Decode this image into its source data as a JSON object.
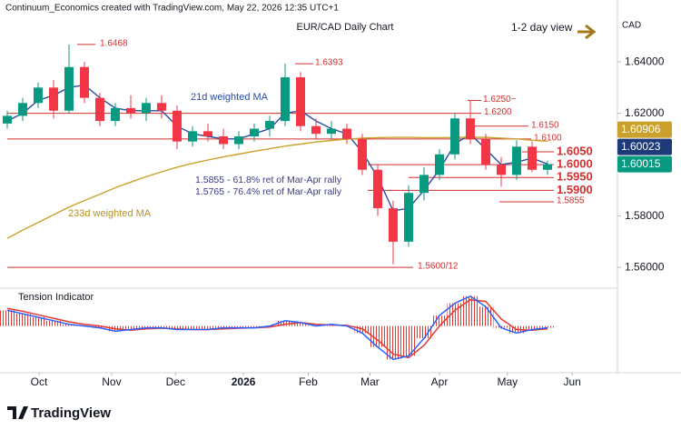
{
  "header": "Continuum_Economics created with TradingView.com, May 22, 2026 12:35 UTC+1",
  "footer_logo": "TradingView",
  "chart_data": [
    {
      "type": "candlestick",
      "title": "EUR/CAD Daily Chart",
      "subtitle": "1-2 day view",
      "currency": "CAD",
      "xlim": [
        -0.47,
        39.53
      ],
      "ylim": [
        1.5526,
        1.6641
      ],
      "xticks": [
        {
          "value": 2.06,
          "label": "Oct"
        },
        {
          "value": 6.76,
          "label": "Nov"
        },
        {
          "value": 10.9,
          "label": "Dec"
        },
        {
          "value": 15.3,
          "label": "2026"
        },
        {
          "value": 19.5,
          "label": "Feb"
        },
        {
          "value": 23.5,
          "label": "Mar"
        },
        {
          "value": 28,
          "label": "Apr"
        },
        {
          "value": 32.4,
          "label": "May"
        },
        {
          "value": 36.6,
          "label": "Jun"
        }
      ],
      "yticks": [
        {
          "value": 1.64,
          "label": "1.64000"
        },
        {
          "value": 1.62,
          "label": "1.62000"
        },
        {
          "value": 1.6,
          "label": "1.60000"
        },
        {
          "value": 1.58,
          "label": "1.58000"
        },
        {
          "value": 1.56,
          "label": "1.56000"
        }
      ],
      "grid": false,
      "up_color": "#089981",
      "down_color": "#f23645",
      "ohlc": {
        "open": [
          1.616,
          1.619,
          1.624,
          1.63,
          1.621,
          1.638,
          1.626,
          1.617,
          1.622,
          1.62,
          1.624,
          1.621,
          1.609,
          1.613,
          1.611,
          1.608,
          1.611,
          1.614,
          1.617,
          1.634,
          1.615,
          1.612,
          1.614,
          1.61,
          1.598,
          1.583,
          1.57,
          1.589,
          1.596,
          1.604,
          1.618,
          1.61,
          1.6,
          1.596,
          1.607,
          1.598
        ],
        "high": [
          1.621,
          1.626,
          1.632,
          1.633,
          1.6468,
          1.64,
          1.628,
          1.624,
          1.627,
          1.626,
          1.627,
          1.623,
          1.615,
          1.616,
          1.614,
          1.613,
          1.616,
          1.619,
          1.6393,
          1.636,
          1.618,
          1.617,
          1.616,
          1.612,
          1.6,
          1.586,
          1.592,
          1.599,
          1.606,
          1.62,
          1.625,
          1.612,
          1.603,
          1.6095,
          1.609,
          1.6015
        ],
        "low": [
          1.614,
          1.617,
          1.622,
          1.618,
          1.62,
          1.624,
          1.615,
          1.615,
          1.618,
          1.617,
          1.618,
          1.606,
          1.607,
          1.609,
          1.606,
          1.606,
          1.609,
          1.611,
          1.615,
          1.613,
          1.61,
          1.61,
          1.608,
          1.596,
          1.58,
          1.5612,
          1.568,
          1.586,
          1.594,
          1.602,
          1.608,
          1.598,
          1.5915,
          1.594,
          1.597,
          1.596
        ],
        "close": [
          1.619,
          1.624,
          1.63,
          1.621,
          1.638,
          1.626,
          1.617,
          1.622,
          1.62,
          1.624,
          1.621,
          1.609,
          1.613,
          1.611,
          1.608,
          1.611,
          1.614,
          1.617,
          1.634,
          1.615,
          1.612,
          1.614,
          1.61,
          1.598,
          1.583,
          1.57,
          1.589,
          1.596,
          1.604,
          1.618,
          1.61,
          1.6,
          1.596,
          1.607,
          1.598,
          1.6002
        ]
      },
      "ma": [
        {
          "name": "21d weighted MA",
          "color": "#2a4ea0",
          "values": [
            1.617,
            1.62,
            1.625,
            1.627,
            1.63,
            1.631,
            1.626,
            1.622,
            1.621,
            1.621,
            1.621,
            1.615,
            1.612,
            1.611,
            1.61,
            1.61,
            1.612,
            1.614,
            1.62,
            1.621,
            1.617,
            1.614,
            1.612,
            1.605,
            1.595,
            1.582,
            1.583,
            1.59,
            1.598,
            1.608,
            1.612,
            1.606,
            1.6,
            1.601,
            1.6025,
            1.60023
          ]
        },
        {
          "name": "233d weighted MA",
          "color": "#c9a12c",
          "values": [
            1.5713,
            1.5745,
            1.5775,
            1.5805,
            1.5835,
            1.586,
            1.5885,
            1.591,
            1.5932,
            1.5953,
            1.5972,
            1.599,
            1.6005,
            1.6018,
            1.603,
            1.6041,
            1.6052,
            1.6062,
            1.6072,
            1.608,
            1.6088,
            1.6094,
            1.6099,
            1.6103,
            1.6105,
            1.6106,
            1.6106,
            1.6105,
            1.6105,
            1.6106,
            1.6107,
            1.6106,
            1.6103,
            1.61,
            1.6095,
            1.6091
          ]
        }
      ],
      "price_labels": [
        {
          "value": 1.60906,
          "color": "#c9a12c"
        },
        {
          "value": 1.60023,
          "color": "#1e3a78"
        },
        {
          "value": 1.60015,
          "color": "#089981"
        }
      ],
      "levels": [
        {
          "value": 1.6468,
          "label": "1.6468"
        },
        {
          "value": 1.6393,
          "label": "1.6393"
        },
        {
          "value": 1.625,
          "label": "1.6250~"
        },
        {
          "value": 1.62,
          "label": "1.6200"
        },
        {
          "value": 1.615,
          "label": "1.6150"
        },
        {
          "value": 1.61,
          "label": "1.6100"
        },
        {
          "value": 1.605,
          "label": "1.6050"
        },
        {
          "value": 1.6,
          "label": "1.6000"
        },
        {
          "value": 1.595,
          "label": "1.5950"
        },
        {
          "value": 1.59,
          "label": "1.5900"
        },
        {
          "value": 1.5855,
          "label": "1.5855"
        },
        {
          "value": 1.56,
          "label": "1.5600/12"
        }
      ],
      "level_color": "#d32f2f",
      "annotations": [
        "1.5855 - 61.8% ret of Mar-Apr rally",
        "1.5765 - 76.4% ret of Mar-Apr rally"
      ]
    },
    {
      "type": "oscillator",
      "title": "Tension Indicator",
      "xlim": [
        -0.47,
        39.53
      ],
      "ylim": [
        -1.2,
        1.0
      ],
      "series": [
        {
          "color": "#2962ff",
          "values": [
            0.45,
            0.35,
            0.25,
            0.15,
            0.05,
            0.0,
            -0.05,
            -0.15,
            -0.1,
            -0.05,
            -0.05,
            -0.1,
            -0.1,
            -0.1,
            -0.05,
            -0.05,
            -0.05,
            0.0,
            0.15,
            0.1,
            0.0,
            0.05,
            0.0,
            -0.2,
            -0.6,
            -0.95,
            -0.85,
            -0.35,
            0.3,
            0.65,
            0.85,
            0.55,
            -0.05,
            -0.2,
            -0.1,
            -0.05
          ]
        },
        {
          "color": "#e53935",
          "values": [
            0.5,
            0.42,
            0.32,
            0.22,
            0.12,
            0.05,
            0.0,
            -0.08,
            -0.12,
            -0.08,
            -0.06,
            -0.08,
            -0.1,
            -0.1,
            -0.08,
            -0.06,
            -0.05,
            -0.03,
            0.05,
            0.1,
            0.05,
            0.03,
            0.02,
            -0.08,
            -0.4,
            -0.8,
            -0.9,
            -0.55,
            0.0,
            0.45,
            0.75,
            0.7,
            0.2,
            -0.1,
            -0.12,
            -0.08
          ]
        }
      ],
      "histogram_color": "#e53935"
    }
  ]
}
